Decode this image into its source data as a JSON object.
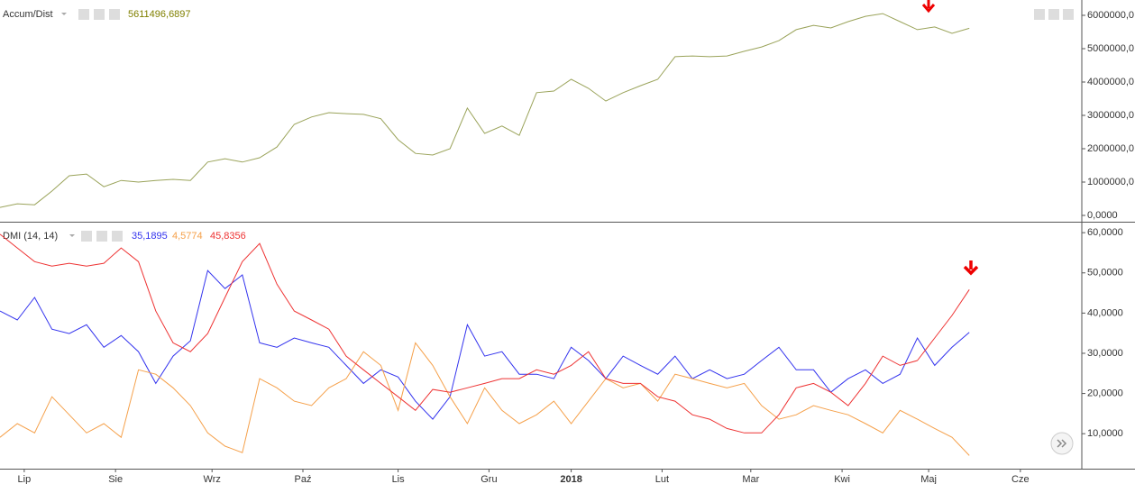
{
  "chart_data": [
    {
      "type": "line",
      "title": "Accum/Dist",
      "x": [
        0,
        4,
        8,
        12,
        16,
        20,
        24,
        28,
        32,
        36,
        40,
        44,
        48,
        52,
        56,
        60,
        64,
        68,
        72,
        76,
        80,
        84,
        88,
        92,
        96,
        100,
        104,
        108,
        112,
        116,
        120,
        124,
        128,
        132,
        136,
        140,
        144,
        148,
        152,
        156,
        160,
        164,
        168,
        172,
        176,
        180,
        184,
        188,
        192,
        196,
        200,
        204,
        208,
        212,
        216,
        220,
        224
      ],
      "xlim": [
        0,
        250
      ],
      "ylim": [
        -189000,
        6459000
      ],
      "yticks": [
        {
          "value": 0,
          "label": "0,0000"
        },
        {
          "value": 1000000,
          "label": "1000000,0"
        },
        {
          "value": 2000000,
          "label": "2000000,0"
        },
        {
          "value": 3000000,
          "label": "3000000,0"
        },
        {
          "value": 4000000,
          "label": "4000000,0"
        },
        {
          "value": 5000000,
          "label": "5000000,0"
        },
        {
          "value": 6000000,
          "label": "6000000,0"
        }
      ],
      "series": [
        {
          "color": "#9aa35a",
          "last_label": "5611496,6897",
          "values": [
            240000,
            350000,
            320000,
            730000,
            1190000,
            1240000,
            860000,
            1050000,
            1000000,
            1050000,
            1080000,
            1050000,
            1600000,
            1700000,
            1600000,
            1730000,
            2050000,
            2730000,
            2950000,
            3080000,
            3050000,
            3030000,
            2900000,
            2270000,
            1860000,
            1810000,
            2000000,
            3220000,
            2460000,
            2680000,
            2400000,
            3680000,
            3730000,
            4080000,
            3810000,
            3430000,
            3680000,
            3890000,
            4080000,
            4760000,
            4780000,
            4760000,
            4780000,
            4920000,
            5050000,
            5240000,
            5570000,
            5700000,
            5620000,
            5810000,
            5970000,
            6050000,
            5810000,
            5570000,
            5650000,
            5460000,
            5611497
          ]
        }
      ]
    },
    {
      "type": "line",
      "title": "DMI (14, 14)",
      "x": [
        0,
        4,
        8,
        12,
        16,
        20,
        24,
        28,
        32,
        36,
        40,
        44,
        48,
        52,
        56,
        60,
        64,
        68,
        72,
        76,
        80,
        84,
        88,
        92,
        96,
        100,
        104,
        108,
        112,
        116,
        120,
        124,
        128,
        132,
        136,
        140,
        144,
        148,
        152,
        156,
        160,
        164,
        168,
        172,
        176,
        180,
        184,
        188,
        192,
        196,
        200,
        204,
        208,
        212,
        216,
        220,
        224
      ],
      "xlim": [
        0,
        250
      ],
      "xticks": [
        {
          "value": 5.6,
          "label": "Lip"
        },
        {
          "value": 26.7,
          "label": "Sie"
        },
        {
          "value": 49,
          "label": "Wrz"
        },
        {
          "value": 70,
          "label": "Paź"
        },
        {
          "value": 92,
          "label": "Lis"
        },
        {
          "value": 113,
          "label": "Gru"
        },
        {
          "value": 132,
          "label": "2018"
        },
        {
          "value": 153,
          "label": "Lut"
        },
        {
          "value": 173.5,
          "label": "Mar"
        },
        {
          "value": 194.6,
          "label": "Kwi"
        },
        {
          "value": 214.6,
          "label": "Maj"
        },
        {
          "value": 235.8,
          "label": "Cze"
        }
      ],
      "ylim": [
        1.3,
        62.5
      ],
      "yticks": [
        {
          "value": 10,
          "label": "10,0000"
        },
        {
          "value": 20,
          "label": "20,0000"
        },
        {
          "value": 30,
          "label": "30,0000"
        },
        {
          "value": 40,
          "label": "40,0000"
        },
        {
          "value": 50,
          "label": "50,0000"
        },
        {
          "value": 60,
          "label": "60,0000"
        }
      ],
      "series": [
        {
          "color": "#3333ee",
          "last_label": "35,1895",
          "values": [
            40.5,
            38.3,
            43.9,
            36,
            34.9,
            37.1,
            31.5,
            34.4,
            30.4,
            22.5,
            29.3,
            33.1,
            50.6,
            46.1,
            49.5,
            32.6,
            31.5,
            33.8,
            32.6,
            31.5,
            27,
            22.5,
            25.9,
            24.1,
            18.1,
            13.6,
            19.2,
            37.1,
            29.3,
            30.4,
            24.8,
            24.8,
            23.7,
            31.5,
            28.2,
            23.7,
            29.3,
            27,
            24.8,
            29.3,
            23.7,
            25.9,
            23.7,
            24.8,
            28.2,
            31.5,
            25.9,
            25.9,
            20.3,
            23.7,
            25.9,
            22.5,
            24.8,
            33.8,
            27,
            31.5,
            35.19
          ]
        },
        {
          "color": "#f5a04a",
          "last_label": "4,5774",
          "values": [
            9.1,
            12.5,
            10.2,
            19.2,
            14.7,
            10.2,
            12.5,
            9.1,
            25.9,
            24.8,
            21.4,
            17,
            10.2,
            6.9,
            5.3,
            23.7,
            21.4,
            18.1,
            17,
            21.4,
            23.7,
            30.4,
            27,
            15.8,
            32.6,
            27,
            19.2,
            12.5,
            21.4,
            15.8,
            12.5,
            14.7,
            18.1,
            12.5,
            18.1,
            23.7,
            21.4,
            22.5,
            18.1,
            24.8,
            23.7,
            22.5,
            21.4,
            22.5,
            17,
            13.6,
            14.7,
            17,
            15.8,
            14.7,
            12.5,
            10.2,
            15.8,
            13.6,
            11.3,
            9.1,
            4.58
          ]
        },
        {
          "color": "#ee3333",
          "last_label": "45,8356",
          "values": [
            59.6,
            56.2,
            52.8,
            51.7,
            52.4,
            51.7,
            52.4,
            56.2,
            52.8,
            40.5,
            32.6,
            30.4,
            34.9,
            43.9,
            52.8,
            57.3,
            47.2,
            40.5,
            38.3,
            36,
            29.3,
            25.9,
            22.5,
            19.2,
            15.8,
            21,
            20.3,
            21.4,
            22.5,
            23.7,
            23.7,
            25.9,
            24.8,
            27,
            30.4,
            23.7,
            22.5,
            22.5,
            19.2,
            18.1,
            14.7,
            13.6,
            11.3,
            10.2,
            10.2,
            14.7,
            21.4,
            22.5,
            20.3,
            17,
            22.5,
            29.3,
            27,
            28.2,
            33.8,
            39.4,
            45.84
          ]
        }
      ]
    }
  ]
}
